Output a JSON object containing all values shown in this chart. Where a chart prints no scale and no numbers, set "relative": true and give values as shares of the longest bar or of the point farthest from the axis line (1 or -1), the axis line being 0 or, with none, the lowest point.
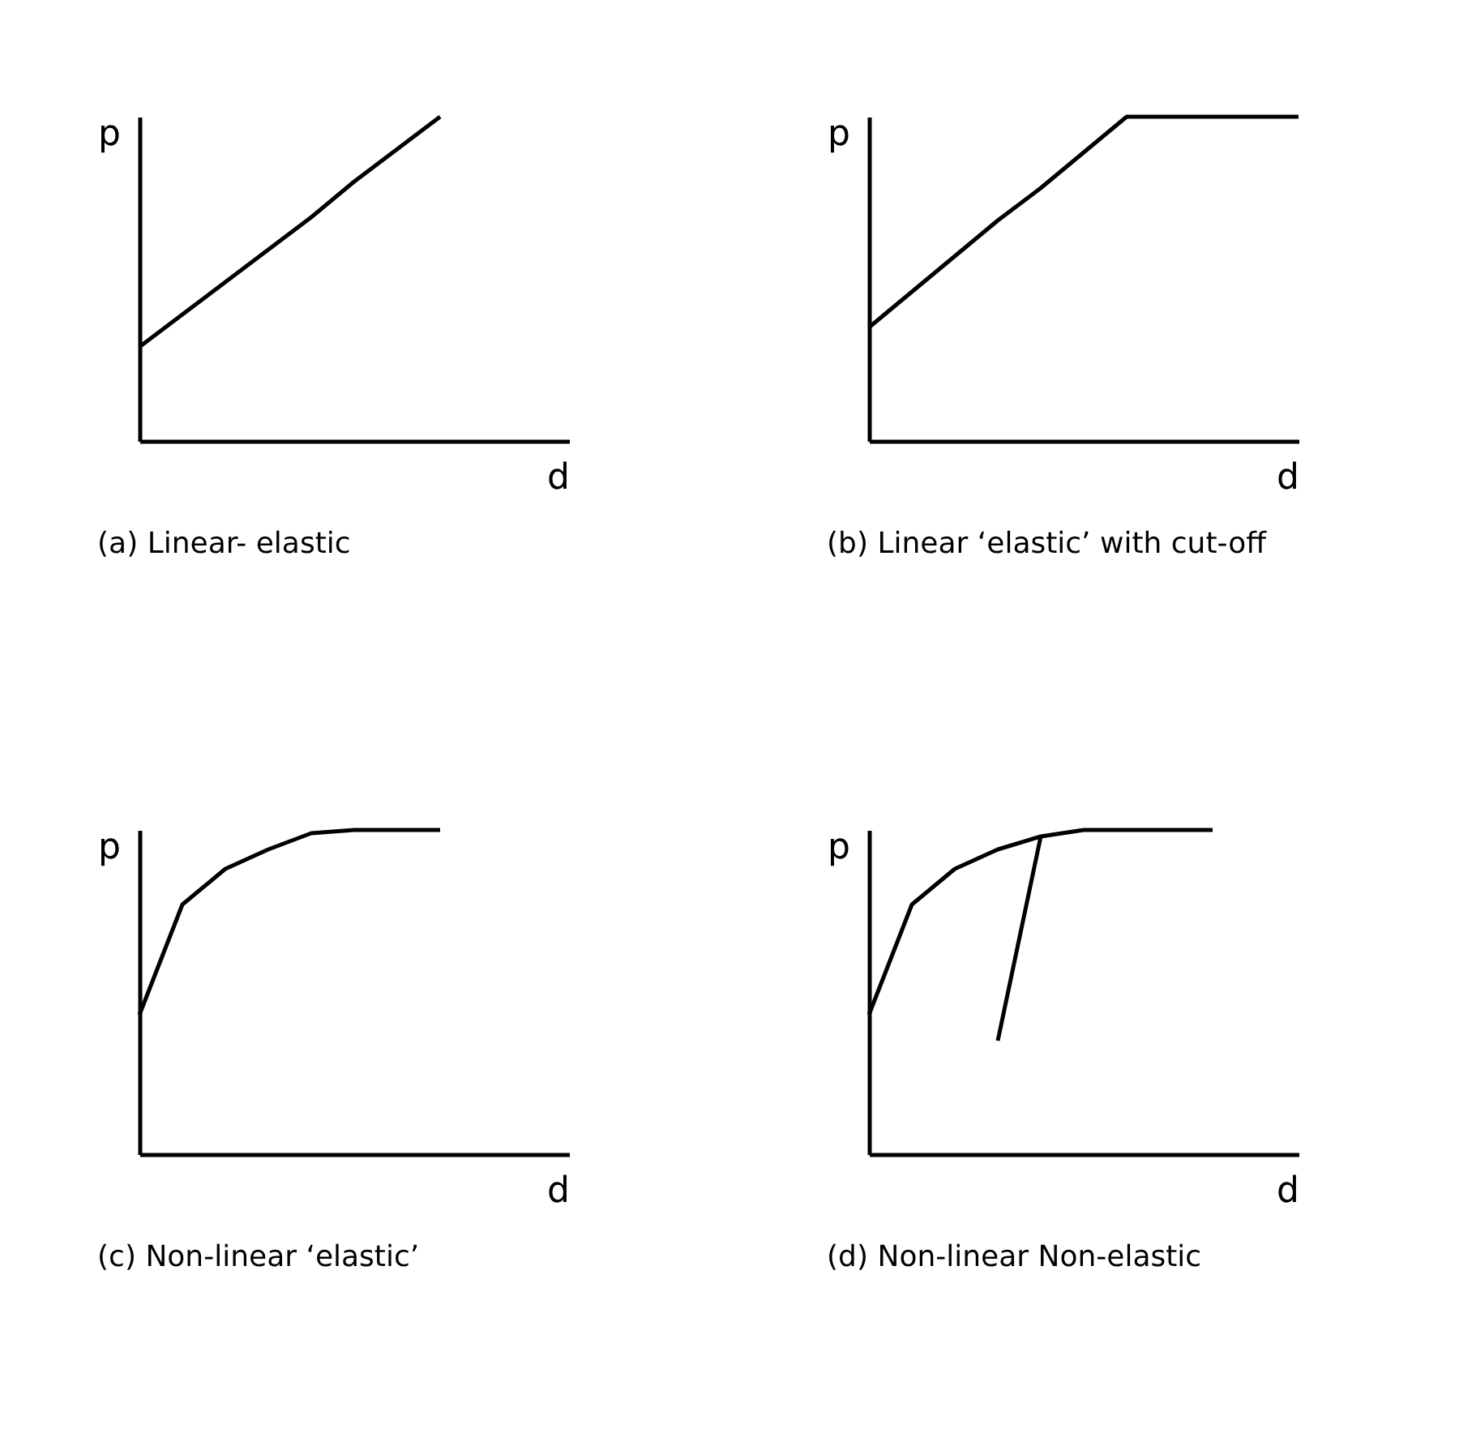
{
  "chart_data": [
    {
      "type": "line",
      "title": "(a) Linear- elastic",
      "xlabel": "d",
      "ylabel": "p",
      "relative": true,
      "categories": [
        null,
        null,
        null,
        null,
        null,
        null,
        null,
        null,
        null,
        null,
        null
      ],
      "series": [
        {
          "color": "#000000",
          "values": [
            0.29,
            0.39,
            0.49,
            0.59,
            0.69,
            0.8,
            0.9,
            1.0,
            null,
            null,
            null
          ]
        }
      ]
    },
    {
      "type": "line",
      "title": "(b) Linear ‘elastic’ with cut-off",
      "xlabel": "d",
      "ylabel": "p",
      "relative": true,
      "categories": [
        null,
        null,
        null,
        null,
        null,
        null,
        null,
        null,
        null,
        null,
        null
      ],
      "series": [
        {
          "color": "#000000",
          "values": [
            0.35,
            0.46,
            0.57,
            0.68,
            0.78,
            0.89,
            1.0,
            1.0,
            1.0,
            1.0,
            1.0
          ]
        }
      ]
    },
    {
      "type": "line",
      "title": "(c) Non-linear ‘elastic’",
      "xlabel": "d",
      "ylabel": "p",
      "relative": true,
      "categories": [
        null,
        null,
        null,
        null,
        null,
        null,
        null,
        null,
        null,
        null,
        null
      ],
      "series": [
        {
          "color": "#000000",
          "values": [
            0.43,
            0.77,
            0.88,
            0.94,
            0.99,
            1.0,
            1.0,
            1.0,
            null,
            null,
            null
          ]
        }
      ]
    },
    {
      "type": "line",
      "title": "(d) Non-linear Non-elastic",
      "xlabel": "d",
      "ylabel": "p",
      "relative": true,
      "categories": [
        null,
        null,
        null,
        null,
        null,
        null,
        null,
        null,
        null,
        null,
        null
      ],
      "series": [
        {
          "color": "#000000",
          "values": [
            0.43,
            0.77,
            0.88,
            0.94,
            0.98,
            1.0,
            1.0,
            1.0,
            1.0,
            null,
            null
          ]
        },
        {
          "color": "#000000",
          "values": [
            null,
            null,
            null,
            0.35,
            0.98,
            null,
            null,
            null,
            null,
            null,
            null
          ]
        }
      ]
    }
  ]
}
